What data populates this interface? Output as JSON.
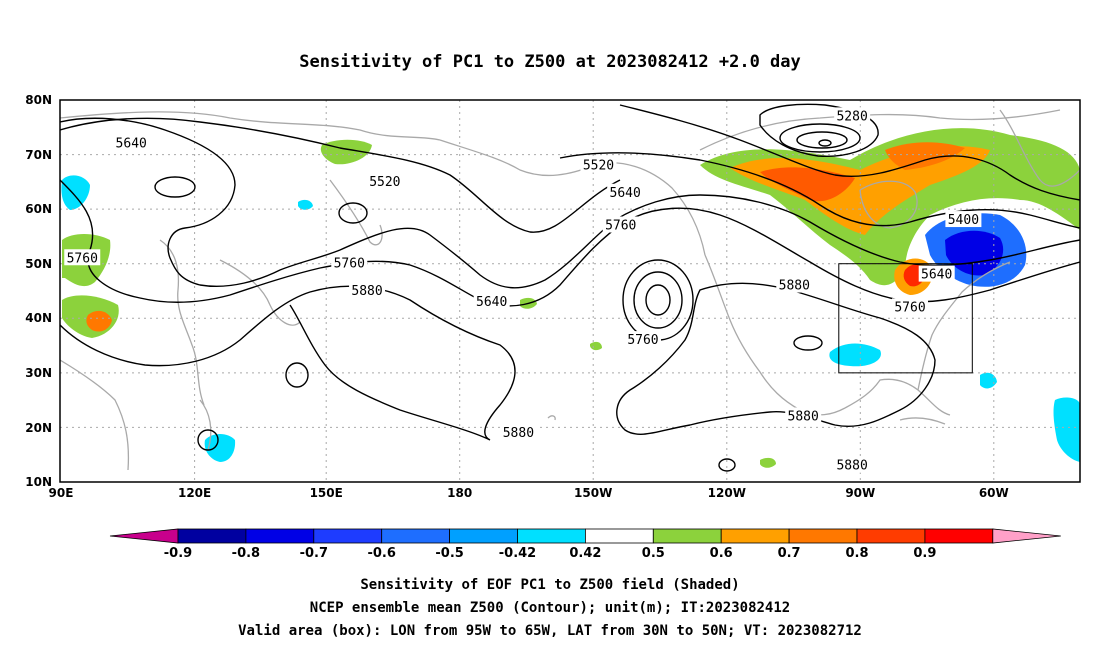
{
  "title": "Sensitivity of PC1 to Z500 at 2023082412 +2.0 day",
  "map": {
    "lon_labels": [
      "90E",
      "120E",
      "150E",
      "180",
      "150W",
      "120W",
      "90W",
      "60W"
    ],
    "lat_labels": [
      "80N",
      "70N",
      "60N",
      "50N",
      "40N",
      "30N",
      "20N",
      "10N"
    ],
    "contour_labels": [
      {
        "text": "5640",
        "lon": 106,
        "lat": 72
      },
      {
        "text": "5520",
        "lon": 163,
        "lat": 65
      },
      {
        "text": "5760",
        "lon": 95,
        "lat": 51
      },
      {
        "text": "5760",
        "lon": 155,
        "lat": 50
      },
      {
        "text": "5880",
        "lon": 159,
        "lat": 45
      },
      {
        "text": "5640",
        "lon": -173,
        "lat": 43
      },
      {
        "text": "5520",
        "lon": -149,
        "lat": 68
      },
      {
        "text": "5640",
        "lon": -143,
        "lat": 63
      },
      {
        "text": "5760",
        "lon": -144,
        "lat": 57
      },
      {
        "text": "5760",
        "lon": -139,
        "lat": 36
      },
      {
        "text": "5280",
        "lon": -92,
        "lat": 77
      },
      {
        "text": "5400",
        "lon": -67,
        "lat": 58
      },
      {
        "text": "5640",
        "lon": -73,
        "lat": 48
      },
      {
        "text": "5760",
        "lon": -79,
        "lat": 42
      },
      {
        "text": "5880",
        "lon": -105,
        "lat": 46
      },
      {
        "text": "5880",
        "lon": -167,
        "lat": 19
      },
      {
        "text": "5880",
        "lon": -103,
        "lat": 22
      },
      {
        "text": "5880",
        "lon": -92,
        "lat": 13
      }
    ],
    "valid_box": {
      "lon_min": -95,
      "lon_max": -65,
      "lat_min": 30,
      "lat_max": 50
    }
  },
  "colorbar": {
    "labels": [
      "-0.9",
      "-0.8",
      "-0.7",
      "-0.6",
      "-0.5",
      "-0.42",
      "0.42",
      "0.5",
      "0.6",
      "0.7",
      "0.8",
      "0.9"
    ],
    "colors": [
      "#0000a0",
      "#0000e6",
      "#1e3cff",
      "#1e6eff",
      "#00a0ff",
      "#00e0ff",
      "#ffffff",
      "#8cd23c",
      "#ffa000",
      "#ff7800",
      "#ff3c00",
      "#ff0000"
    ],
    "under_color": "#c8008c",
    "over_color": "#ffa0c8"
  },
  "captions": {
    "line1": "Sensitivity of EOF PC1 to Z500 field (Shaded)",
    "line2": "NCEP ensemble mean Z500 (Contour); unit(m); IT:2023082412",
    "line3": "Valid area (box): LON from 95W to 65W, LAT from 30N to 50N; VT: 2023082712"
  }
}
